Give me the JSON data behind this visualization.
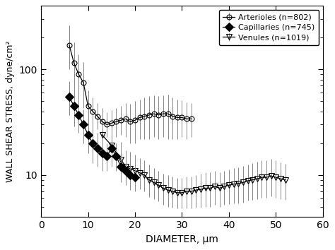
{
  "arterioles": {
    "x": [
      6,
      7,
      8,
      9,
      10,
      11,
      12,
      13,
      14,
      15,
      16,
      17,
      18,
      19,
      20,
      21,
      22,
      23,
      24,
      25,
      26,
      27,
      28,
      29,
      30,
      31,
      32
    ],
    "y": [
      170,
      115,
      90,
      75,
      45,
      40,
      36,
      32,
      30,
      31,
      32,
      33,
      34,
      32,
      33,
      35,
      36,
      37,
      38,
      37,
      38,
      38,
      36,
      35,
      35,
      34,
      34
    ],
    "yerr_lo": [
      70,
      50,
      38,
      32,
      14,
      11,
      9,
      8,
      7,
      8,
      9,
      9,
      11,
      12,
      13,
      13,
      14,
      15,
      15,
      15,
      15,
      16,
      14,
      13,
      12,
      12,
      11
    ],
    "yerr_hi": [
      90,
      65,
      48,
      42,
      18,
      14,
      12,
      11,
      9,
      10,
      11,
      12,
      14,
      15,
      17,
      17,
      18,
      19,
      19,
      19,
      19,
      20,
      18,
      17,
      16,
      15,
      14
    ],
    "label": "Arterioles (n=802)",
    "marker": "o",
    "fillstyle": "none",
    "color": "black",
    "markersize": 5
  },
  "capillaries": {
    "x": [
      6,
      7,
      8,
      9,
      10,
      11,
      12,
      13,
      14,
      15,
      16,
      17,
      18,
      19,
      20
    ],
    "y": [
      55,
      45,
      37,
      30,
      24,
      20,
      18,
      16,
      15,
      18,
      15,
      12,
      11,
      10,
      9.5
    ],
    "yerr_lo": [
      18,
      16,
      12,
      10,
      8,
      7,
      6,
      5,
      4,
      6,
      4,
      3.5,
      3,
      2.8,
      2.5
    ],
    "yerr_hi": [
      22,
      20,
      15,
      12,
      10,
      9,
      7,
      6,
      5,
      7,
      5,
      4.5,
      3.5,
      3.2,
      3.0
    ],
    "label": "Capillaries (n=745)",
    "marker": "D",
    "fillstyle": "full",
    "color": "black",
    "markersize": 6
  },
  "venules": {
    "x": [
      13,
      15,
      17,
      18,
      19,
      20,
      21,
      22,
      23,
      24,
      25,
      26,
      27,
      28,
      29,
      30,
      31,
      32,
      33,
      34,
      35,
      36,
      37,
      38,
      39,
      40,
      41,
      42,
      43,
      44,
      45,
      46,
      47,
      48,
      49,
      50,
      51,
      52
    ],
    "y": [
      24,
      19,
      14,
      12,
      11.5,
      11,
      10.5,
      10,
      9.0,
      8.5,
      8.0,
      7.5,
      7.2,
      7.0,
      6.8,
      6.8,
      7.0,
      7.0,
      7.2,
      7.3,
      7.5,
      7.5,
      7.8,
      7.5,
      7.8,
      8.0,
      8.2,
      8.3,
      8.5,
      8.8,
      9.0,
      9.2,
      9.5,
      9.5,
      9.8,
      9.5,
      9.2,
      9.0
    ],
    "yerr_lo": [
      8,
      6,
      5,
      4,
      3.8,
      3.5,
      3.2,
      3.0,
      2.8,
      2.6,
      2.4,
      2.3,
      2.2,
      2.1,
      2.0,
      2.0,
      2.2,
      2.2,
      2.3,
      2.4,
      2.5,
      2.5,
      2.6,
      2.5,
      2.6,
      2.7,
      2.8,
      2.9,
      3.0,
      3.1,
      3.2,
      3.3,
      3.4,
      3.4,
      3.5,
      3.4,
      3.3,
      3.2
    ],
    "yerr_hi": [
      10,
      8,
      6.5,
      5,
      5.0,
      4.5,
      4.0,
      3.8,
      3.5,
      3.2,
      3.0,
      2.8,
      2.7,
      2.6,
      2.5,
      2.5,
      2.7,
      2.7,
      2.8,
      3.0,
      3.1,
      3.1,
      3.2,
      3.1,
      3.2,
      3.3,
      3.4,
      3.5,
      3.7,
      3.8,
      4.0,
      4.2,
      4.3,
      4.3,
      4.5,
      4.2,
      4.0,
      3.8
    ],
    "label": "Venules (n=1019)",
    "marker": "v",
    "fillstyle": "none",
    "color": "black",
    "markersize": 6
  },
  "xlim": [
    5,
    60
  ],
  "xticks": [
    0,
    10,
    20,
    30,
    40,
    50,
    60
  ],
  "ylim": [
    4,
    400
  ],
  "ylabel": "WALL SHEAR STRESS, dyne/cm²",
  "xlabel": "DIAMETER, μm",
  "background_color": "#ffffff",
  "legend_loc": "upper right"
}
